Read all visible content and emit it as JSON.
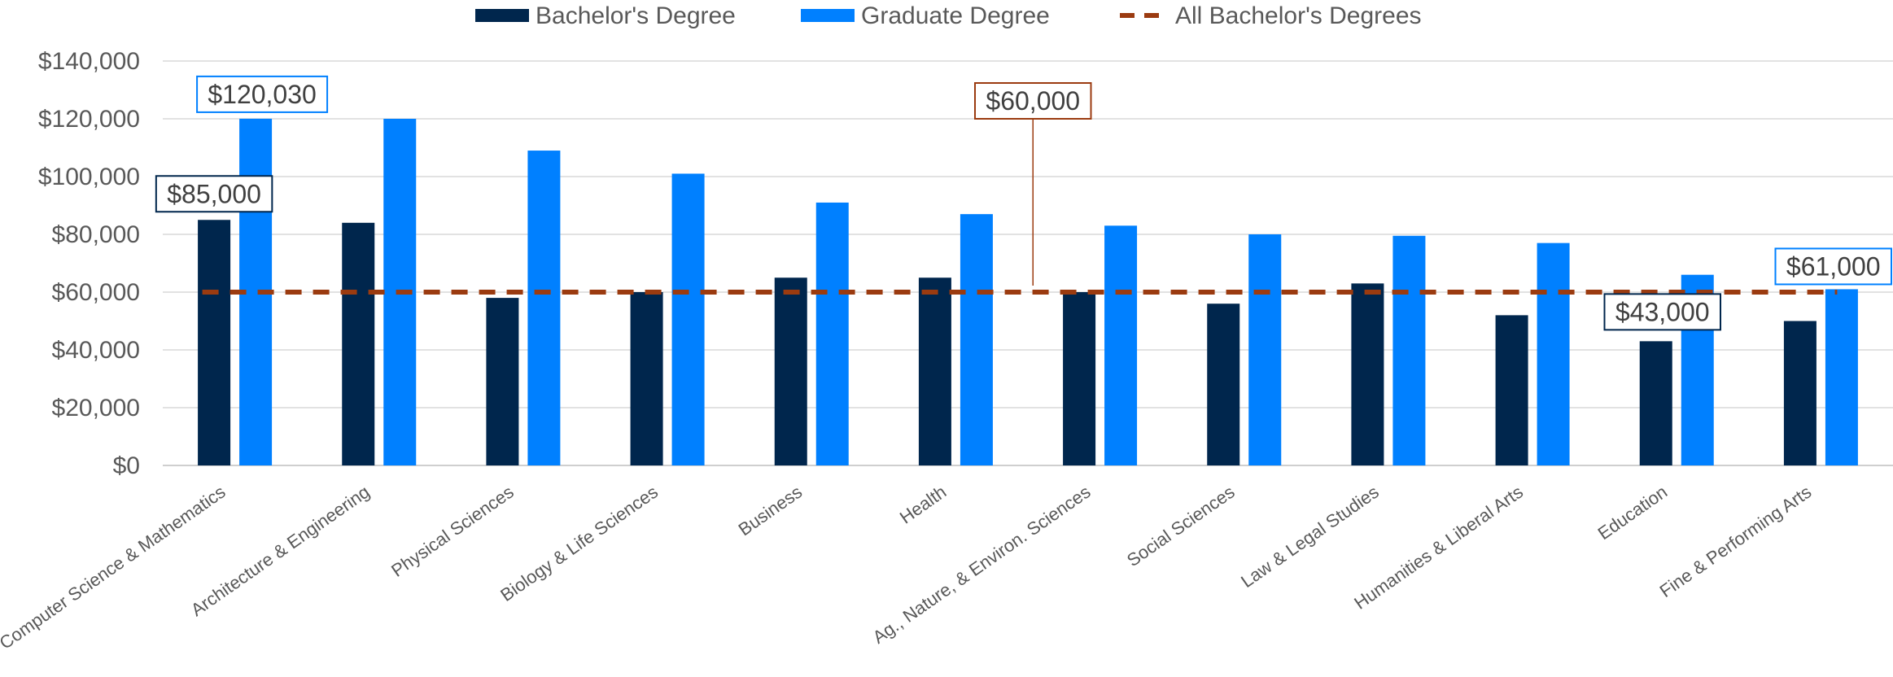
{
  "chart_data": {
    "type": "bar",
    "categories": [
      "Computer Science & Mathematics",
      "Architecture & Engineering",
      "Physical Sciences",
      "Biology & Life Sciences",
      "Business",
      "Health",
      "Ag., Nature, & Environ. Sciences",
      "Social Sciences",
      "Law & Legal Studies",
      "Humanities & Liberal Arts",
      "Education",
      "Fine & Performing Arts"
    ],
    "series": [
      {
        "name": "Bachelor's Degree",
        "color": "#00264d",
        "values": [
          85000,
          84000,
          58000,
          60000,
          65000,
          65000,
          60000,
          56000,
          63000,
          52000,
          43000,
          50000
        ]
      },
      {
        "name": "Graduate Degree",
        "color": "#0080ff",
        "values": [
          120030,
          120000,
          109000,
          101000,
          91000,
          87000,
          83000,
          80000,
          79500,
          77000,
          66000,
          61000
        ]
      }
    ],
    "reference_line": {
      "name": "All Bachelor's Degrees",
      "value": 60000,
      "color": "#9b3b10",
      "style": "dashed"
    },
    "yticks": [
      "$0",
      "$20,000",
      "$40,000",
      "$60,000",
      "$80,000",
      "$100,000",
      "$120,000",
      "$140,000"
    ],
    "ylim": [
      0,
      140000
    ],
    "grid": true,
    "legend_position": "top",
    "callouts": [
      {
        "text": "$120,030",
        "series": 1,
        "category": 0,
        "border_color": "#0080ff"
      },
      {
        "text": "$85,000",
        "series": 0,
        "category": 0,
        "border_color": "#00264d"
      },
      {
        "text": "$60,000",
        "series": "reference",
        "category": 6,
        "border_color": "#9b3b10"
      },
      {
        "text": "$43,000",
        "series": 0,
        "category": 10,
        "border_color": "#00264d"
      },
      {
        "text": "$61,000",
        "series": 1,
        "category": 11,
        "border_color": "#0080ff"
      }
    ]
  }
}
